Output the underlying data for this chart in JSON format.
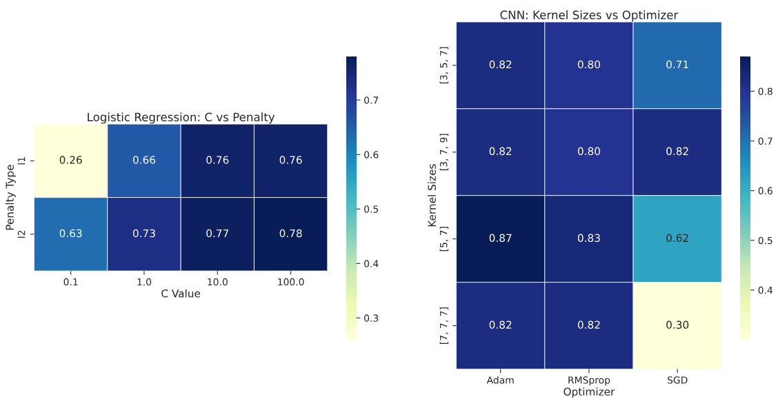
{
  "chart_data": [
    {
      "type": "heatmap",
      "title": "Logistic Regression: C vs Penalty",
      "xlabel": "C Value",
      "ylabel": "Penalty Type",
      "categories": [
        "0.1",
        "1.0",
        "10.0",
        "100.0"
      ],
      "y_categories": [
        "l1",
        "l2"
      ],
      "cells": [
        [
          0.26,
          0.66,
          0.76,
          0.76
        ],
        [
          0.63,
          0.73,
          0.77,
          0.78
        ]
      ],
      "cell_labels": [
        [
          "0.26",
          "0.66",
          "0.76",
          "0.76"
        ],
        [
          "0.63",
          "0.73",
          "0.77",
          "0.78"
        ]
      ],
      "clim": [
        0.26,
        0.78
      ],
      "cticks": [
        0.3,
        0.4,
        0.5,
        0.6,
        0.7
      ]
    },
    {
      "type": "heatmap",
      "title": "CNN: Kernel Sizes vs Optimizer",
      "xlabel": "Optimizer",
      "ylabel": "Kernel Sizes",
      "categories": [
        "Adam",
        "RMSprop",
        "SGD"
      ],
      "y_categories": [
        "[3, 5, 7]",
        "[3, 7, 9]",
        "[5, 7]",
        "[7, 7, 7]"
      ],
      "cells": [
        [
          0.82,
          0.8,
          0.71
        ],
        [
          0.82,
          0.8,
          0.82
        ],
        [
          0.87,
          0.83,
          0.62
        ],
        [
          0.82,
          0.82,
          0.3
        ]
      ],
      "cell_labels": [
        [
          "0.82",
          "0.80",
          "0.71"
        ],
        [
          "0.82",
          "0.80",
          "0.82"
        ],
        [
          "0.87",
          "0.83",
          "0.62"
        ],
        [
          "0.82",
          "0.82",
          "0.30"
        ]
      ],
      "clim": [
        0.3,
        0.87
      ],
      "cticks": [
        0.4,
        0.5,
        0.6,
        0.7,
        0.8
      ]
    }
  ]
}
